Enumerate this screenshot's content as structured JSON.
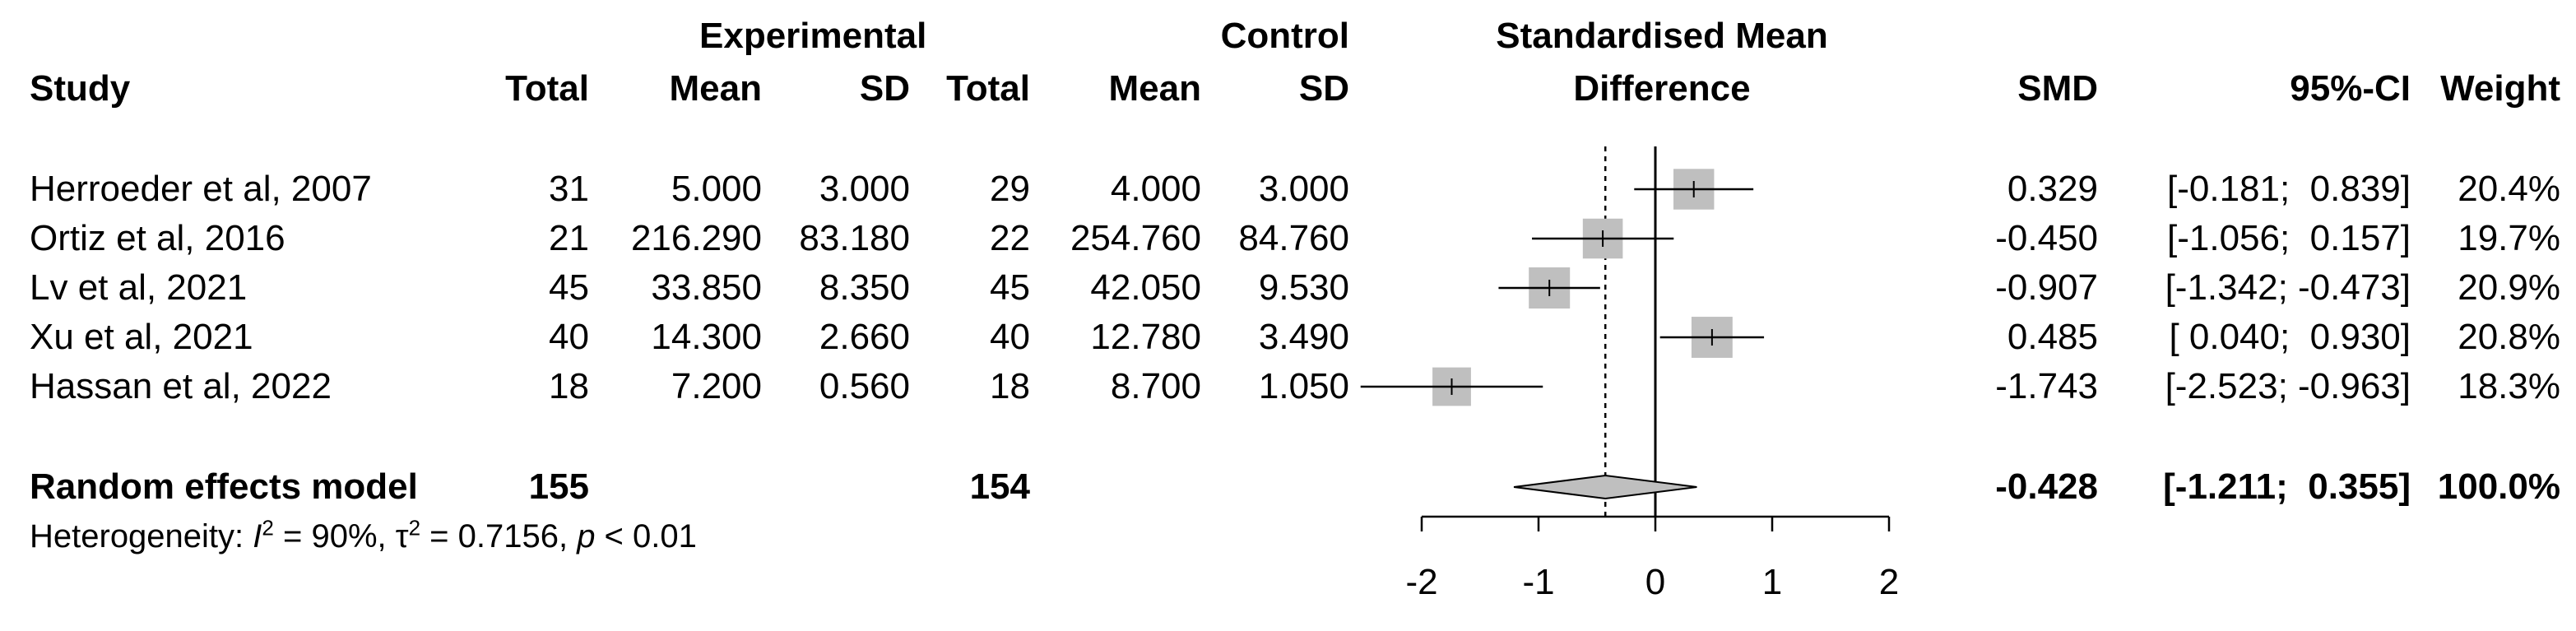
{
  "chart_data": {
    "type": "forest",
    "headers": {
      "study": "Study",
      "exp_group": "Experimental",
      "ctrl_group": "Control",
      "plot_title_line1": "Standardised Mean",
      "plot_title_line2": "Difference",
      "total": "Total",
      "mean": "Mean",
      "sd": "SD",
      "smd": "SMD",
      "ci": "95%-CI",
      "weight": "Weight"
    },
    "studies": [
      {
        "study": "Herroeder et al, 2007",
        "exp_total": "31",
        "exp_mean": "5.000",
        "exp_sd": "3.000",
        "ctrl_total": "29",
        "ctrl_mean": "4.000",
        "ctrl_sd": "3.000",
        "smd": 0.329,
        "lower": -0.181,
        "upper": 0.839,
        "smd_text": "0.329",
        "ci_text": "[-0.181;  0.839]",
        "weight": 20.4,
        "weight_text": "20.4%"
      },
      {
        "study": "Ortiz et al, 2016",
        "exp_total": "21",
        "exp_mean": "216.290",
        "exp_sd": "83.180",
        "ctrl_total": "22",
        "ctrl_mean": "254.760",
        "ctrl_sd": "84.760",
        "smd": -0.45,
        "lower": -1.056,
        "upper": 0.157,
        "smd_text": "-0.450",
        "ci_text": "[-1.056;  0.157]",
        "weight": 19.7,
        "weight_text": "19.7%"
      },
      {
        "study": "Lv et al, 2021",
        "exp_total": "45",
        "exp_mean": "33.850",
        "exp_sd": "8.350",
        "ctrl_total": "45",
        "ctrl_mean": "42.050",
        "ctrl_sd": "9.530",
        "smd": -0.907,
        "lower": -1.342,
        "upper": -0.473,
        "smd_text": "-0.907",
        "ci_text": "[-1.342; -0.473]",
        "weight": 20.9,
        "weight_text": "20.9%"
      },
      {
        "study": "Xu et al, 2021",
        "exp_total": "40",
        "exp_mean": "14.300",
        "exp_sd": "2.660",
        "ctrl_total": "40",
        "ctrl_mean": "12.780",
        "ctrl_sd": "3.490",
        "smd": 0.485,
        "lower": 0.04,
        "upper": 0.93,
        "smd_text": "0.485",
        "ci_text": "[ 0.040;  0.930]",
        "weight": 20.8,
        "weight_text": "20.8%"
      },
      {
        "study": "Hassan et al, 2022",
        "exp_total": "18",
        "exp_mean": "7.200",
        "exp_sd": "0.560",
        "ctrl_total": "18",
        "ctrl_mean": "8.700",
        "ctrl_sd": "1.050",
        "smd": -1.743,
        "lower": -2.523,
        "upper": -0.963,
        "smd_text": "-1.743",
        "ci_text": "[-2.523; -0.963]",
        "weight": 18.3,
        "weight_text": "18.3%"
      }
    ],
    "pooled": {
      "label": "Random effects model",
      "exp_total": "155",
      "ctrl_total": "154",
      "smd": -0.428,
      "lower": -1.211,
      "upper": 0.355,
      "smd_text": "-0.428",
      "ci_text": "[-1.211;  0.355]",
      "weight_text": "100.0%"
    },
    "heterogeneity": {
      "prefix": "Heterogeneity: ",
      "i2_letter": "I",
      "i2_exp": "2",
      "i2_value": " = 90%, ",
      "tau_letter": "τ",
      "tau_exp": "2",
      "tau_value": " = 0.7156, ",
      "p_letter": "p",
      "p_value": " < 0.01"
    },
    "x_axis": {
      "xlim": [
        -2,
        2
      ],
      "ticks": [
        -2,
        -1,
        0,
        1,
        2
      ],
      "tick_labels": [
        "-2",
        "-1",
        "0",
        "1",
        "2"
      ],
      "xlabel": ""
    },
    "colors": {
      "square": "#bfbfbf",
      "diamond": "#bfbfbf",
      "line": "#000000"
    }
  }
}
